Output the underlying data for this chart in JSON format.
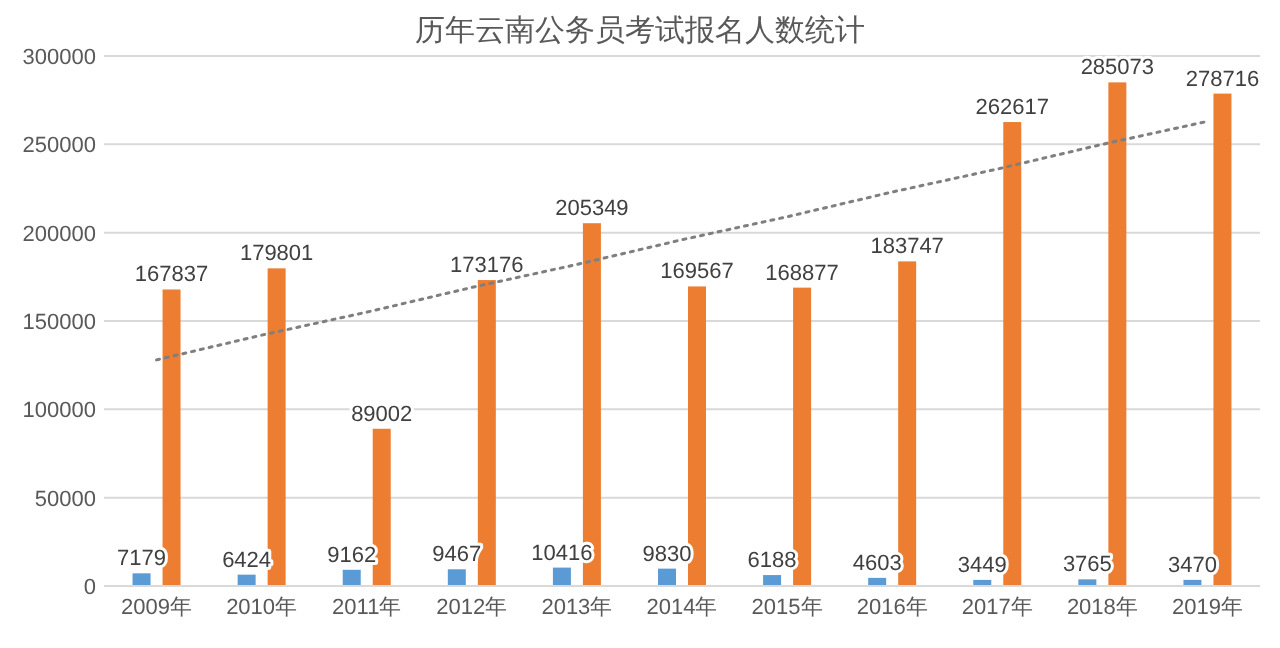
{
  "chart_data": {
    "type": "bar",
    "title": "历年云南公务员考试报名人数统计",
    "categories": [
      "2009年",
      "2010年",
      "2011年",
      "2012年",
      "2013年",
      "2014年",
      "2015年",
      "2016年",
      "2017年",
      "2018年",
      "2019年"
    ],
    "series": [
      {
        "color": "#5b9bd5",
        "values": [
          7179,
          6424,
          9162,
          9467,
          10416,
          9830,
          6188,
          4603,
          3449,
          3765,
          3470
        ],
        "value_labels": [
          "7179",
          "6424",
          "9162",
          "9467",
          "10416",
          "9830",
          "6188",
          "4603",
          "3449",
          "3765",
          "3470"
        ]
      },
      {
        "color": "#ed7d31",
        "values": [
          167837,
          179801,
          89002,
          173176,
          205349,
          169567,
          168877,
          183747,
          262617,
          285073,
          278716
        ],
        "value_labels": [
          "167837",
          "179801",
          "89002",
          "173176",
          "205349",
          "169567",
          "168877",
          "183747",
          "262617",
          "285073",
          "278716"
        ]
      },
      {
        "type": "line",
        "color": "#7f7f7f",
        "line_style": "dotted",
        "values": [
          128000,
          142000,
          155000,
          169000,
          182000,
          196000,
          209000,
          223000,
          236000,
          250000,
          263000
        ]
      }
    ],
    "ylim": [
      0,
      300000
    ],
    "yticks": [
      0,
      50000,
      100000,
      150000,
      200000,
      250000,
      300000
    ],
    "grid": "y"
  }
}
